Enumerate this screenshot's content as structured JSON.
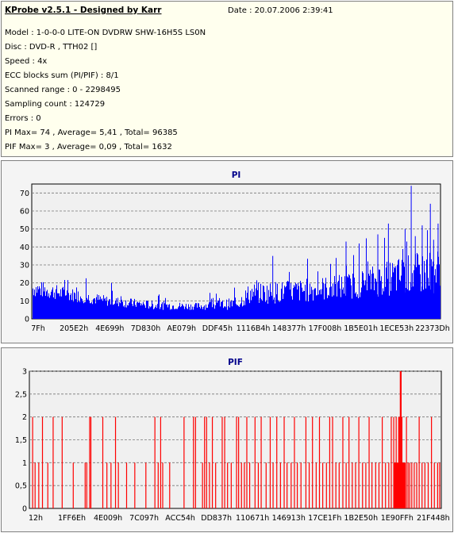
{
  "info": {
    "title": "KProbe v2.5.1 - Designed by Karr",
    "date": "Date : 20.07.2006 2:39:41",
    "model": "Model : 1-0-0-0 LITE-ON DVDRW SHW-16H5S  LS0N",
    "disc": "Disc : DVD-R , TTH02 []",
    "speed": "Speed : 4x",
    "ecc": "ECC blocks sum (PI/PIF) : 8/1",
    "range": "Scanned range : 0 - 2298495",
    "sampling": "Sampling count : 124729",
    "errors": "Errors : 0",
    "pi_stats": "PI Max= 74 , Average= 5,41 , Total= 96385",
    "pif_stats": "PIF Max= 3 , Average= 0,09 , Total= 1632"
  },
  "chart_data": [
    {
      "type": "bar",
      "title": "PI",
      "xlabel": "",
      "ylabel": "",
      "ylim": [
        0,
        75
      ],
      "yticks": [
        "0",
        "10",
        "20",
        "30",
        "40",
        "50",
        "60",
        "70"
      ],
      "xticks": [
        "7Fh",
        "205E2h",
        "4E699h",
        "7D830h",
        "AE079h",
        "DDF45h",
        "1116B4h",
        "148377h",
        "17F008h",
        "1B5E01h",
        "1ECE53h",
        "22373Dh"
      ],
      "grid": true,
      "color": "#0000ff",
      "profile": [
        {
          "x": 0.0,
          "base": 12,
          "peak": 22
        },
        {
          "x": 0.08,
          "base": 10,
          "peak": 18
        },
        {
          "x": 0.18,
          "base": 7,
          "peak": 13
        },
        {
          "x": 0.3,
          "base": 5,
          "peak": 10
        },
        {
          "x": 0.4,
          "base": 5,
          "peak": 9
        },
        {
          "x": 0.5,
          "base": 5,
          "peak": 12
        },
        {
          "x": 0.53,
          "base": 8,
          "peak": 20
        },
        {
          "x": 0.65,
          "base": 9,
          "peak": 22
        },
        {
          "x": 0.78,
          "base": 11,
          "peak": 26
        },
        {
          "x": 0.9,
          "base": 13,
          "peak": 35
        },
        {
          "x": 1.0,
          "base": 14,
          "peak": 40
        }
      ],
      "spikes": [
        {
          "x": 0.93,
          "value": 74
        },
        {
          "x": 0.977,
          "value": 64
        },
        {
          "x": 0.996,
          "value": 53
        },
        {
          "x": 0.874,
          "value": 53
        },
        {
          "x": 0.848,
          "value": 47
        },
        {
          "x": 0.957,
          "value": 52
        },
        {
          "x": 0.915,
          "value": 50
        },
        {
          "x": 0.94,
          "value": 46
        },
        {
          "x": 0.77,
          "value": 43
        },
        {
          "x": 0.59,
          "value": 35
        },
        {
          "x": 0.985,
          "value": 44
        }
      ]
    },
    {
      "type": "bar",
      "title": "PIF",
      "xlabel": "",
      "ylabel": "",
      "ylim": [
        0,
        3
      ],
      "yticks": [
        "0",
        "0,5",
        "1",
        "1,5",
        "2",
        "2,5",
        "3"
      ],
      "xticks": [
        "12h",
        "1FF6Eh",
        "4E009h",
        "7C097h",
        "ACC54h",
        "DD837h",
        "110671h",
        "146913h",
        "17CE1Fh",
        "1B2E50h",
        "1E90FFh",
        "21F448h"
      ],
      "grid": true,
      "color": "#ff0000",
      "bars": [
        {
          "x": 0.006,
          "value": 2
        },
        {
          "x": 0.012,
          "value": 1
        },
        {
          "x": 0.021,
          "value": 1
        },
        {
          "x": 0.03,
          "value": 2
        },
        {
          "x": 0.043,
          "value": 1
        },
        {
          "x": 0.056,
          "value": 2
        },
        {
          "x": 0.078,
          "value": 2
        },
        {
          "x": 0.105,
          "value": 1
        },
        {
          "x": 0.134,
          "value": 1
        },
        {
          "x": 0.138,
          "value": 1
        },
        {
          "x": 0.145,
          "value": 2
        },
        {
          "x": 0.148,
          "value": 2
        },
        {
          "x": 0.177,
          "value": 2
        },
        {
          "x": 0.187,
          "value": 1
        },
        {
          "x": 0.197,
          "value": 1
        },
        {
          "x": 0.208,
          "value": 2
        },
        {
          "x": 0.215,
          "value": 1
        },
        {
          "x": 0.235,
          "value": 1
        },
        {
          "x": 0.255,
          "value": 1
        },
        {
          "x": 0.282,
          "value": 1
        },
        {
          "x": 0.304,
          "value": 2
        },
        {
          "x": 0.312,
          "value": 1
        },
        {
          "x": 0.318,
          "value": 2
        },
        {
          "x": 0.323,
          "value": 1
        },
        {
          "x": 0.34,
          "value": 1
        },
        {
          "x": 0.375,
          "value": 2
        },
        {
          "x": 0.398,
          "value": 2
        },
        {
          "x": 0.403,
          "value": 2
        },
        {
          "x": 0.42,
          "value": 1
        },
        {
          "x": 0.425,
          "value": 2
        },
        {
          "x": 0.43,
          "value": 2
        },
        {
          "x": 0.437,
          "value": 1
        },
        {
          "x": 0.444,
          "value": 2
        },
        {
          "x": 0.452,
          "value": 1
        },
        {
          "x": 0.468,
          "value": 2
        },
        {
          "x": 0.474,
          "value": 2
        },
        {
          "x": 0.481,
          "value": 1
        },
        {
          "x": 0.49,
          "value": 1
        },
        {
          "x": 0.503,
          "value": 2
        },
        {
          "x": 0.508,
          "value": 2
        },
        {
          "x": 0.515,
          "value": 1
        },
        {
          "x": 0.522,
          "value": 1
        },
        {
          "x": 0.528,
          "value": 2
        },
        {
          "x": 0.535,
          "value": 1
        },
        {
          "x": 0.548,
          "value": 2
        },
        {
          "x": 0.556,
          "value": 1
        },
        {
          "x": 0.563,
          "value": 2
        },
        {
          "x": 0.575,
          "value": 1
        },
        {
          "x": 0.585,
          "value": 2
        },
        {
          "x": 0.592,
          "value": 1
        },
        {
          "x": 0.601,
          "value": 2
        },
        {
          "x": 0.61,
          "value": 1
        },
        {
          "x": 0.619,
          "value": 2
        },
        {
          "x": 0.626,
          "value": 1
        },
        {
          "x": 0.636,
          "value": 1
        },
        {
          "x": 0.644,
          "value": 2
        },
        {
          "x": 0.651,
          "value": 1
        },
        {
          "x": 0.66,
          "value": 1
        },
        {
          "x": 0.672,
          "value": 2
        },
        {
          "x": 0.68,
          "value": 1
        },
        {
          "x": 0.688,
          "value": 2
        },
        {
          "x": 0.697,
          "value": 1
        },
        {
          "x": 0.705,
          "value": 2
        },
        {
          "x": 0.713,
          "value": 1
        },
        {
          "x": 0.722,
          "value": 1
        },
        {
          "x": 0.73,
          "value": 2
        },
        {
          "x": 0.737,
          "value": 2
        },
        {
          "x": 0.745,
          "value": 1
        },
        {
          "x": 0.753,
          "value": 1
        },
        {
          "x": 0.762,
          "value": 2
        },
        {
          "x": 0.77,
          "value": 1
        },
        {
          "x": 0.777,
          "value": 2
        },
        {
          "x": 0.785,
          "value": 1
        },
        {
          "x": 0.793,
          "value": 1
        },
        {
          "x": 0.801,
          "value": 2
        },
        {
          "x": 0.81,
          "value": 1
        },
        {
          "x": 0.818,
          "value": 1
        },
        {
          "x": 0.826,
          "value": 2
        },
        {
          "x": 0.833,
          "value": 1
        },
        {
          "x": 0.842,
          "value": 1
        },
        {
          "x": 0.85,
          "value": 1
        },
        {
          "x": 0.858,
          "value": 2
        },
        {
          "x": 0.866,
          "value": 1
        },
        {
          "x": 0.874,
          "value": 1
        },
        {
          "x": 0.88,
          "value": 2
        },
        {
          "x": 0.886,
          "value": 2
        },
        {
          "x": 0.889,
          "value": 1
        },
        {
          "x": 0.892,
          "value": 2
        },
        {
          "x": 0.895,
          "value": 1
        },
        {
          "x": 0.898,
          "value": 2
        },
        {
          "x": 0.9,
          "value": 2
        },
        {
          "x": 0.902,
          "value": 3
        },
        {
          "x": 0.904,
          "value": 3
        },
        {
          "x": 0.906,
          "value": 2
        },
        {
          "x": 0.909,
          "value": 1
        },
        {
          "x": 0.913,
          "value": 1
        },
        {
          "x": 0.917,
          "value": 2
        },
        {
          "x": 0.921,
          "value": 1
        },
        {
          "x": 0.925,
          "value": 1
        },
        {
          "x": 0.93,
          "value": 1
        },
        {
          "x": 0.936,
          "value": 1
        },
        {
          "x": 0.942,
          "value": 1
        },
        {
          "x": 0.948,
          "value": 2
        },
        {
          "x": 0.955,
          "value": 1
        },
        {
          "x": 0.962,
          "value": 1
        },
        {
          "x": 0.97,
          "value": 1
        },
        {
          "x": 0.978,
          "value": 2
        },
        {
          "x": 0.985,
          "value": 1
        },
        {
          "x": 0.993,
          "value": 1
        },
        {
          "x": 0.998,
          "value": 1
        }
      ],
      "cluster": {
        "from": 0.885,
        "to": 0.915,
        "value": 1
      }
    }
  ]
}
